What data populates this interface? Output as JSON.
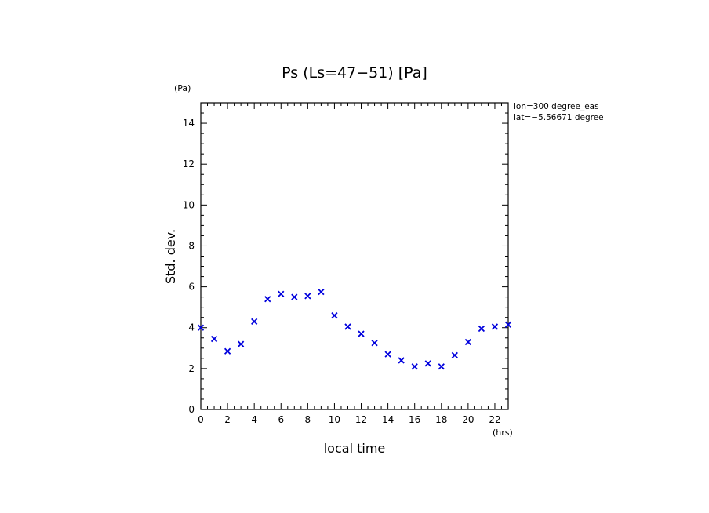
{
  "chart_data": {
    "type": "scatter",
    "title": "Ps (Ls=47−51) [Pa]",
    "xlabel": "local time",
    "ylabel": "Std. dev.",
    "x_unit": "(hrs)",
    "y_unit": "(Pa)",
    "xlim": [
      0,
      23
    ],
    "ylim": [
      0,
      15
    ],
    "x_ticks": [
      0,
      2,
      4,
      6,
      8,
      10,
      12,
      14,
      16,
      18,
      20,
      22
    ],
    "y_ticks": [
      0,
      2,
      4,
      6,
      8,
      10,
      12,
      14
    ],
    "annotations": [
      "lon=300 degree_eas",
      "lat=−5.56671 degree"
    ],
    "marker": "x",
    "marker_color": "#0000dd",
    "grid": false,
    "series": [
      {
        "x": [
          0,
          1,
          2,
          3,
          4,
          5,
          6,
          7,
          8,
          9,
          10,
          11,
          12,
          13,
          14,
          15,
          16,
          17,
          18,
          19,
          20,
          21,
          22,
          23
        ],
        "y": [
          4.0,
          3.45,
          2.85,
          3.2,
          4.3,
          5.4,
          5.65,
          5.5,
          5.55,
          5.75,
          4.6,
          4.05,
          3.7,
          3.25,
          2.7,
          2.4,
          2.1,
          2.25,
          2.1,
          2.65,
          3.3,
          3.95,
          4.05,
          4.15
        ]
      }
    ]
  }
}
